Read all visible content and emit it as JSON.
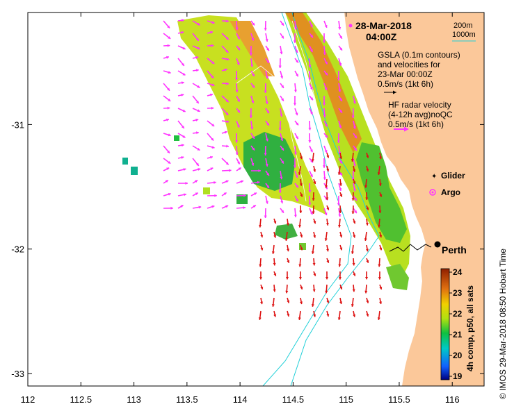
{
  "header": {
    "date": "28-Mar-2018",
    "time": "04:00Z"
  },
  "depth_legend": {
    "line1": "200m",
    "line2": "1000m",
    "color_200m": "#20d0d8",
    "color_1000m": "#20d0d8"
  },
  "gsla_note": {
    "line1": "GSLA (0.1m contours)",
    "line2": "and velocities for",
    "line3": "23-Mar 00:00Z",
    "scale": "0.5m/s (1kt 6h)"
  },
  "hf_note": {
    "line1": "HF radar velocity",
    "line2": "(4-12h avg)noQC",
    "scale": "0.5m/s (1kt 6h)"
  },
  "symbols": {
    "glider_label": "Glider",
    "argo_label": "Argo",
    "glider_color": "#ff33ff",
    "argo_color": "#ff33ff"
  },
  "city": {
    "name": "Perth"
  },
  "colorbar": {
    "label": "4h comp, p50, all sats",
    "ticks": [
      "19",
      "20",
      "21",
      "22",
      "23",
      "24"
    ]
  },
  "side_caption": "©  IMOS 29-Mar-2018 08:50 Hobart Time",
  "axes": {
    "x_ticks": [
      "112",
      "112.5",
      "113",
      "113.5",
      "114",
      "114.5",
      "115",
      "115.5",
      "116"
    ],
    "y_ticks": [
      "-31",
      "-32",
      "-33"
    ],
    "xlim": [
      112,
      116.3
    ],
    "ylim": [
      -33.1,
      -30.1
    ]
  },
  "colors": {
    "land": "#fbc89a",
    "hf_arrow": "#ff33ff",
    "gsla_arrow": "#dd1111"
  }
}
